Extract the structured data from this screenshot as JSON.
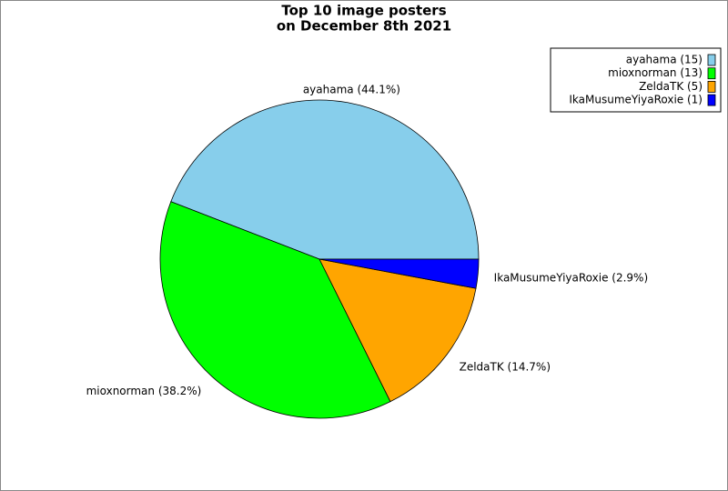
{
  "chart_data": {
    "type": "pie",
    "title": "Top 10 image posters",
    "subtitle": "on December 8th 2021",
    "categories": [
      "ayahama",
      "mioxnorman",
      "ZeldaTK",
      "IkaMusumeYiyaRoxie"
    ],
    "values": [
      15,
      13,
      5,
      1
    ],
    "value_labels": [
      "ayahama (44.1%)",
      "mioxnorman (38.2%)",
      "ZeldaTK (14.7%)",
      "IkaMusumeYiyaRoxie (2.9%)"
    ],
    "legend_labels": [
      "ayahama (15)",
      "mioxnorman (13)",
      "ZeldaTK (5)",
      "IkaMusumeYiyaRoxie (1)"
    ],
    "colors": [
      "#87ceeb",
      "#00ff00",
      "#ffa500",
      "#0000ff"
    ],
    "legend": "upper right"
  }
}
